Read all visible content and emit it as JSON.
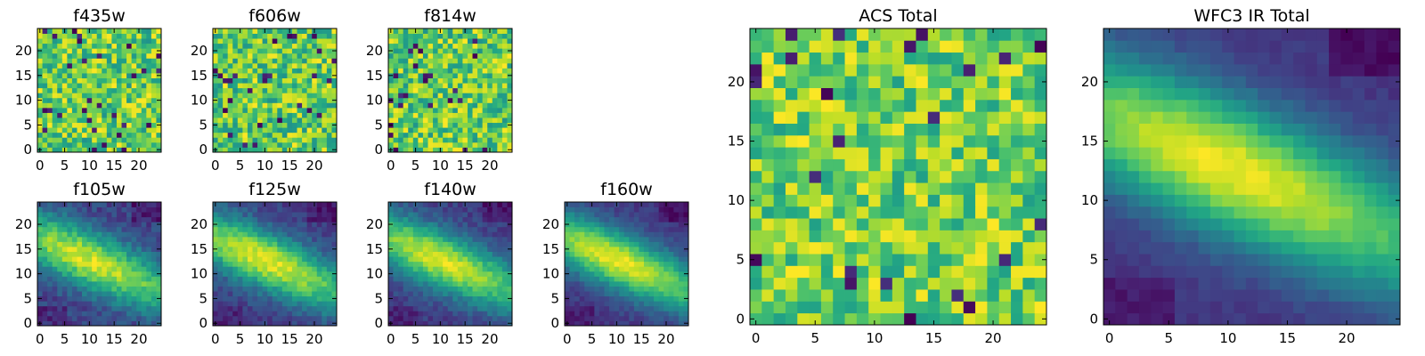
{
  "chart_data": [
    {
      "type": "heatmap",
      "title": "f435w",
      "xlim": [
        -0.5,
        24.5
      ],
      "ylim": [
        -0.5,
        24.5
      ],
      "xticks": [
        0,
        5,
        10,
        15,
        20
      ],
      "yticks": [
        0,
        5,
        10,
        15,
        20
      ],
      "pattern": "noise",
      "noise_amplitude": 0.25,
      "seed": 11,
      "colormap": "viridis",
      "description_values": "random noise, mostly high values (green-yellow) with scattered low pixels"
    },
    {
      "type": "heatmap",
      "title": "f606w",
      "xlim": [
        -0.5,
        24.5
      ],
      "ylim": [
        -0.5,
        24.5
      ],
      "xticks": [
        0,
        5,
        10,
        15,
        20
      ],
      "yticks": [
        0,
        5,
        10,
        15,
        20
      ],
      "pattern": "noise",
      "noise_amplitude": 0.25,
      "seed": 23,
      "colormap": "viridis"
    },
    {
      "type": "heatmap",
      "title": "f814w",
      "xlim": [
        -0.5,
        24.5
      ],
      "ylim": [
        -0.5,
        24.5
      ],
      "xticks": [
        0,
        5,
        10,
        15,
        20
      ],
      "yticks": [
        0,
        5,
        10,
        15,
        20
      ],
      "pattern": "noise",
      "noise_amplitude": 0.25,
      "seed": 37,
      "colormap": "viridis"
    },
    {
      "type": "heatmap",
      "title": "f105w",
      "xlim": [
        -0.5,
        24.5
      ],
      "ylim": [
        -0.5,
        24.5
      ],
      "xticks": [
        0,
        5,
        10,
        15,
        20
      ],
      "yticks": [
        0,
        5,
        10,
        15,
        20
      ],
      "pattern": "diagonal",
      "noise_amplitude": 0.12,
      "seed": 41,
      "colormap": "viridis"
    },
    {
      "type": "heatmap",
      "title": "f125w",
      "xlim": [
        -0.5,
        24.5
      ],
      "ylim": [
        -0.5,
        24.5
      ],
      "xticks": [
        0,
        5,
        10,
        15,
        20
      ],
      "yticks": [
        0,
        5,
        10,
        15,
        20
      ],
      "pattern": "diagonal",
      "noise_amplitude": 0.1,
      "seed": 53,
      "colormap": "viridis"
    },
    {
      "type": "heatmap",
      "title": "f140w",
      "xlim": [
        -0.5,
        24.5
      ],
      "ylim": [
        -0.5,
        24.5
      ],
      "xticks": [
        0,
        5,
        10,
        15,
        20
      ],
      "yticks": [
        0,
        5,
        10,
        15,
        20
      ],
      "pattern": "diagonal",
      "noise_amplitude": 0.09,
      "seed": 67,
      "colormap": "viridis"
    },
    {
      "type": "heatmap",
      "title": "f160w",
      "xlim": [
        -0.5,
        24.5
      ],
      "ylim": [
        -0.5,
        24.5
      ],
      "xticks": [
        0,
        5,
        10,
        15,
        20
      ],
      "yticks": [
        0,
        5,
        10,
        15,
        20
      ],
      "pattern": "diagonal",
      "noise_amplitude": 0.07,
      "seed": 79,
      "colormap": "viridis"
    },
    {
      "type": "heatmap",
      "title": "ACS Total",
      "xlim": [
        -0.5,
        24.5
      ],
      "ylim": [
        -0.5,
        24.5
      ],
      "xticks": [
        0,
        5,
        10,
        15,
        20
      ],
      "yticks": [
        0,
        5,
        10,
        15,
        20
      ],
      "pattern": "noise",
      "noise_amplitude": 0.22,
      "seed": 97,
      "colormap": "viridis"
    },
    {
      "type": "heatmap",
      "title": "WFC3 IR Total",
      "xlim": [
        -0.5,
        24.5
      ],
      "ylim": [
        -0.5,
        24.5
      ],
      "xticks": [
        0,
        5,
        10,
        15,
        20
      ],
      "yticks": [
        0,
        5,
        10,
        15,
        20
      ],
      "pattern": "diagonal",
      "noise_amplitude": 0.04,
      "seed": 101,
      "colormap": "viridis"
    }
  ]
}
